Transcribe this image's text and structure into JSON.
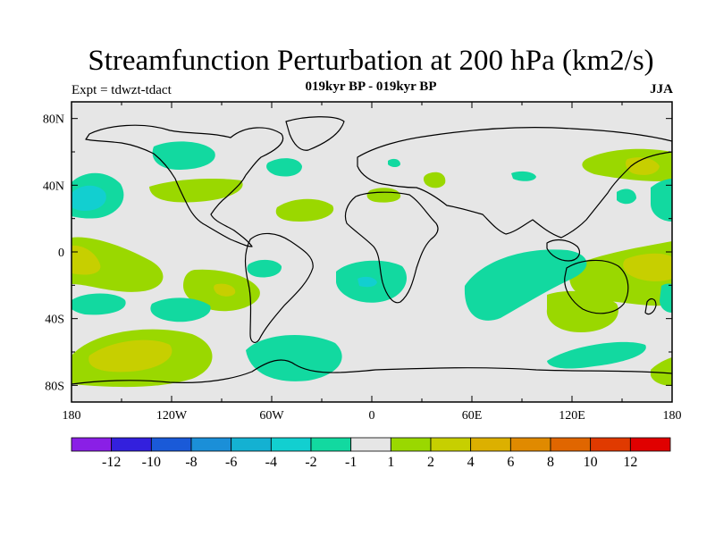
{
  "title": "Streamfunction Perturbation at 200 hPa (km2/s)",
  "subtitle_center": "019kyr BP - 019kyr BP",
  "subtitle_left": "Expt = tdwzt-tdact",
  "subtitle_right": "JJA",
  "map": {
    "land_mask_color": "#e6e6e6",
    "coast_color": "#000000",
    "x_ticks": [
      "180",
      "120W",
      "60W",
      "0",
      "60E",
      "120E",
      "180"
    ],
    "y_ticks": [
      "80N",
      "40N",
      "0",
      "40S",
      "80S"
    ]
  },
  "colorbar": {
    "colors": [
      "#8a1fe6",
      "#3320dd",
      "#1a5ad8",
      "#1b8fd8",
      "#14b1d2",
      "#12cfd0",
      "#12d9a0",
      "#e6e6e6",
      "#9ad800",
      "#c7cf00",
      "#dcb000",
      "#e08a00",
      "#e06600",
      "#e03a00",
      "#e00000"
    ],
    "labels": [
      "-12",
      "-10",
      "-8",
      "-6",
      "-4",
      "-2",
      "-1",
      "1",
      "2",
      "4",
      "6",
      "8",
      "10",
      "12"
    ]
  }
}
